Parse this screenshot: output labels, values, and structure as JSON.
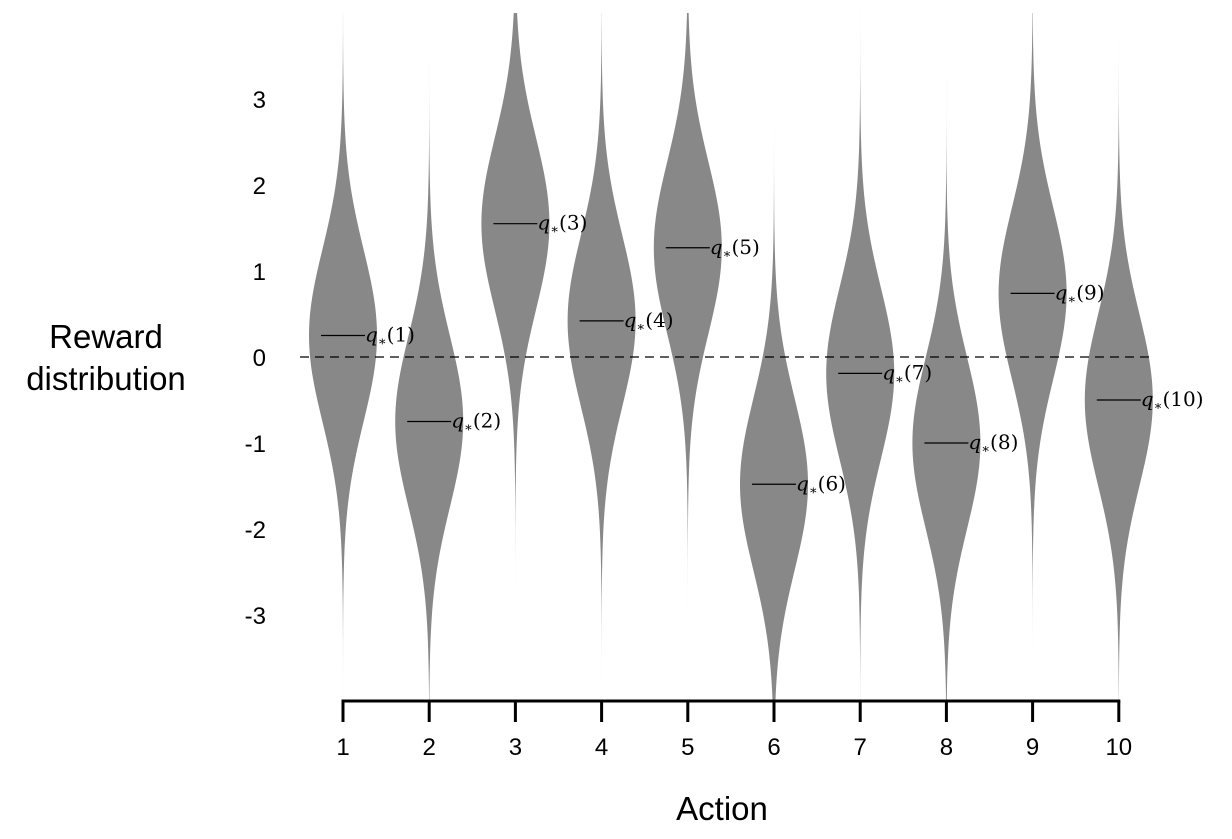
{
  "chart_data": {
    "type": "violin",
    "ylabel_lines": [
      "Reward",
      "distribution"
    ],
    "xlabel": "Action",
    "categories": [
      "1",
      "2",
      "3",
      "4",
      "5",
      "6",
      "7",
      "8",
      "9",
      "10"
    ],
    "yticks": [
      "-3",
      "-2",
      "-1",
      "0",
      "1",
      "2",
      "3"
    ],
    "ylim": [
      -4,
      4
    ],
    "std": 1,
    "means": [
      0.25,
      -0.75,
      1.55,
      0.42,
      1.27,
      -1.48,
      -0.19,
      -1.0,
      0.74,
      -0.5
    ],
    "labels": [
      "q⁎(1)",
      "q⁎(2)",
      "q⁎(3)",
      "q⁎(4)",
      "q⁎(5)",
      "q⁎(6)",
      "q⁎(7)",
      "q⁎(8)",
      "q⁎(9)",
      "q⁎(10)"
    ],
    "label_parts": [
      {
        "q": "q",
        "sub": "∗",
        "arg": "(1)"
      },
      {
        "q": "q",
        "sub": "∗",
        "arg": "(2)"
      },
      {
        "q": "q",
        "sub": "∗",
        "arg": "(3)"
      },
      {
        "q": "q",
        "sub": "∗",
        "arg": "(4)"
      },
      {
        "q": "q",
        "sub": "∗",
        "arg": "(5)"
      },
      {
        "q": "q",
        "sub": "∗",
        "arg": "(6)"
      },
      {
        "q": "q",
        "sub": "∗",
        "arg": "(7)"
      },
      {
        "q": "q",
        "sub": "∗",
        "arg": "(8)"
      },
      {
        "q": "q",
        "sub": "∗",
        "arg": "(9)"
      },
      {
        "q": "q",
        "sub": "∗",
        "arg": "(10)"
      }
    ],
    "zero_line": "dashed",
    "grid": false,
    "colors": {
      "violin": "#888888",
      "text": "#000000",
      "axis": "#000000"
    }
  }
}
